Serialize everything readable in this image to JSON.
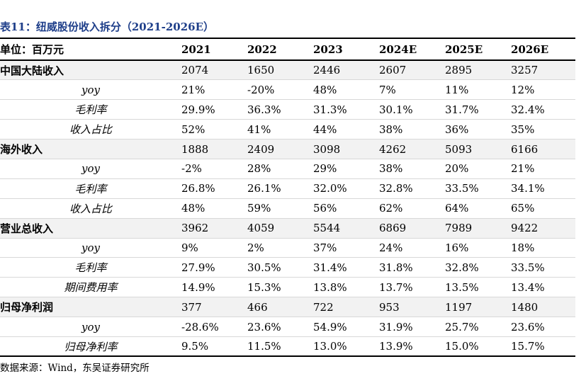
{
  "title": "表11：纽威股份收入拆分（2021-2026E）",
  "header": [
    "单位：百万元",
    "2021",
    "2022",
    "2023",
    "2024E",
    "2025E",
    "2026E"
  ],
  "rows": [
    {
      "label": "中国大陆收入",
      "type": "main",
      "values": [
        "2074",
        "1650",
        "2446",
        "2607",
        "2895",
        "3257"
      ]
    },
    {
      "label": "yoy",
      "type": "sub",
      "values": [
        "21%",
        "-20%",
        "48%",
        "7%",
        "11%",
        "12%"
      ]
    },
    {
      "label": "毛利率",
      "type": "sub",
      "values": [
        "29.9%",
        "36.3%",
        "31.3%",
        "30.1%",
        "31.7%",
        "32.4%"
      ]
    },
    {
      "label": "收入占比",
      "type": "sub",
      "values": [
        "52%",
        "41%",
        "44%",
        "38%",
        "36%",
        "35%"
      ]
    },
    {
      "label": "海外收入",
      "type": "main",
      "values": [
        "1888",
        "2409",
        "3098",
        "4262",
        "5093",
        "6166"
      ]
    },
    {
      "label": "yoy",
      "type": "sub",
      "values": [
        "-2%",
        "28%",
        "29%",
        "38%",
        "20%",
        "21%"
      ]
    },
    {
      "label": "毛利率",
      "type": "sub",
      "values": [
        "26.8%",
        "26.1%",
        "32.0%",
        "32.8%",
        "33.5%",
        "34.1%"
      ]
    },
    {
      "label": "收入占比",
      "type": "sub",
      "values": [
        "48%",
        "59%",
        "56%",
        "62%",
        "64%",
        "65%"
      ]
    },
    {
      "label": "营业总收入",
      "type": "main",
      "values": [
        "3962",
        "4059",
        "5544",
        "6869",
        "7989",
        "9422"
      ]
    },
    {
      "label": "yoy",
      "type": "sub",
      "values": [
        "9%",
        "2%",
        "37%",
        "24%",
        "16%",
        "18%"
      ]
    },
    {
      "label": "毛利率",
      "type": "sub",
      "values": [
        "27.9%",
        "30.5%",
        "31.4%",
        "31.8%",
        "32.8%",
        "33.5%"
      ]
    },
    {
      "label": "期间费用率",
      "type": "sub",
      "values": [
        "14.9%",
        "15.3%",
        "13.8%",
        "13.7%",
        "13.5%",
        "13.4%"
      ]
    },
    {
      "label": "归母净利润",
      "type": "main",
      "values": [
        "377",
        "466",
        "722",
        "953",
        "1197",
        "1480"
      ]
    },
    {
      "label": "yoy",
      "type": "sub",
      "values": [
        "-28.6%",
        "23.6%",
        "54.9%",
        "31.9%",
        "25.7%",
        "23.6%"
      ]
    },
    {
      "label": "归母净利率",
      "type": "sub",
      "values": [
        "9.5%",
        "11.5%",
        "13.0%",
        "13.9%",
        "15.0%",
        "15.7%"
      ]
    }
  ],
  "source": "数据来源：Wind，东吴证券研究所"
}
